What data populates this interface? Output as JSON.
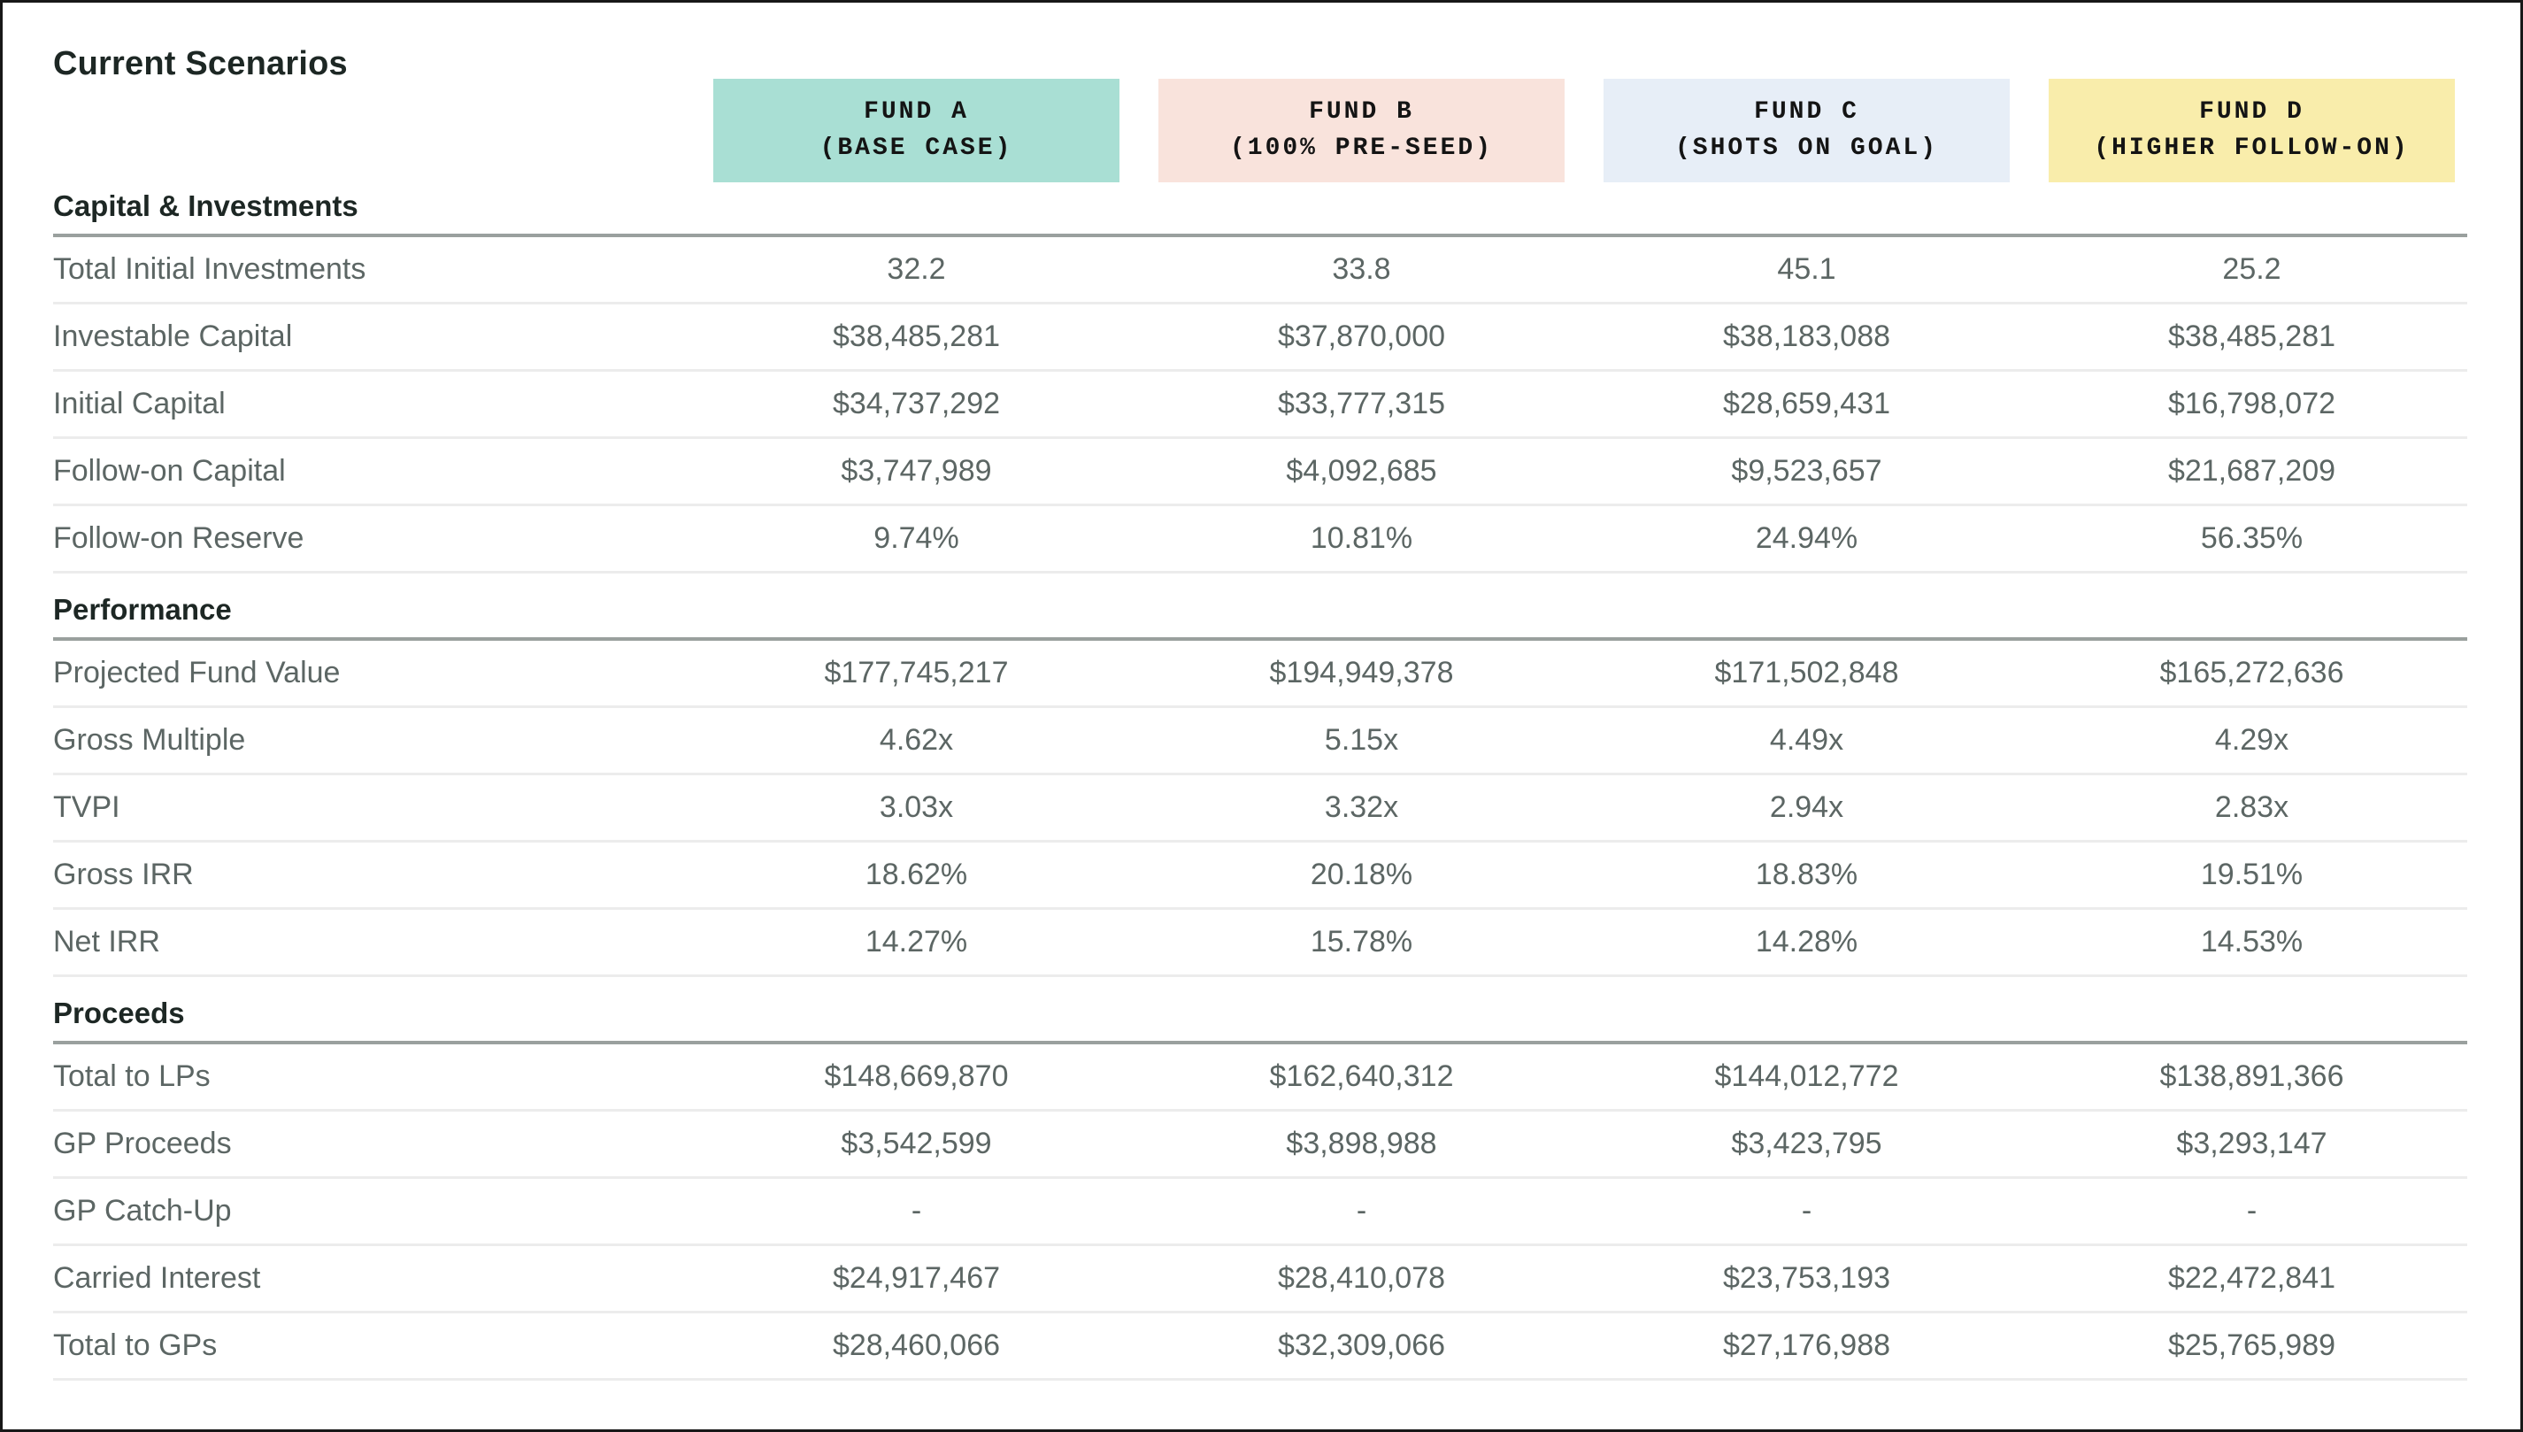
{
  "page": {
    "title": "Current Scenarios"
  },
  "colors": {
    "fund_a_bg": "#a9dfd4",
    "fund_b_bg": "#f9e3dc",
    "fund_c_bg": "#e7eef7",
    "fund_d_bg": "#f9edab",
    "section_divider": "#9aa09e",
    "row_divider": "#ececec",
    "heading_text": "#1d2724",
    "body_text": "#5c6664"
  },
  "funds": [
    {
      "name": "FUND A",
      "subtitle": "(BASE CASE)",
      "color": "#a9dfd4"
    },
    {
      "name": "FUND B",
      "subtitle": "(100% PRE-SEED)",
      "color": "#f9e3dc"
    },
    {
      "name": "FUND C",
      "subtitle": "(SHOTS ON GOAL)",
      "color": "#e7eef7"
    },
    {
      "name": "FUND D",
      "subtitle": "(HIGHER FOLLOW-ON)",
      "color": "#f9edab"
    }
  ],
  "sections": [
    {
      "label": "Capital & Investments",
      "rows": [
        {
          "label": "Total Initial Investments",
          "values": [
            "32.2",
            "33.8",
            "45.1",
            "25.2"
          ]
        },
        {
          "label": "Investable Capital",
          "values": [
            "$38,485,281",
            "$37,870,000",
            "$38,183,088",
            "$38,485,281"
          ]
        },
        {
          "label": "Initial Capital",
          "values": [
            "$34,737,292",
            "$33,777,315",
            "$28,659,431",
            "$16,798,072"
          ]
        },
        {
          "label": "Follow-on Capital",
          "values": [
            "$3,747,989",
            "$4,092,685",
            "$9,523,657",
            "$21,687,209"
          ]
        },
        {
          "label": "Follow-on Reserve",
          "values": [
            "9.74%",
            "10.81%",
            "24.94%",
            "56.35%"
          ]
        }
      ]
    },
    {
      "label": "Performance",
      "rows": [
        {
          "label": "Projected Fund Value",
          "values": [
            "$177,745,217",
            "$194,949,378",
            "$171,502,848",
            "$165,272,636"
          ]
        },
        {
          "label": "Gross Multiple",
          "values": [
            "4.62x",
            "5.15x",
            "4.49x",
            "4.29x"
          ]
        },
        {
          "label": "TVPI",
          "values": [
            "3.03x",
            "3.32x",
            "2.94x",
            "2.83x"
          ]
        },
        {
          "label": "Gross IRR",
          "values": [
            "18.62%",
            "20.18%",
            "18.83%",
            "19.51%"
          ]
        },
        {
          "label": "Net IRR",
          "values": [
            "14.27%",
            "15.78%",
            "14.28%",
            "14.53%"
          ]
        }
      ]
    },
    {
      "label": "Proceeds",
      "rows": [
        {
          "label": "Total to LPs",
          "values": [
            "$148,669,870",
            "$162,640,312",
            "$144,012,772",
            "$138,891,366"
          ]
        },
        {
          "label": "GP Proceeds",
          "values": [
            "$3,542,599",
            "$3,898,988",
            "$3,423,795",
            "$3,293,147"
          ]
        },
        {
          "label": "GP Catch-Up",
          "values": [
            "-",
            "-",
            "-",
            "-"
          ]
        },
        {
          "label": "Carried Interest",
          "values": [
            "$24,917,467",
            "$28,410,078",
            "$23,753,193",
            "$22,472,841"
          ]
        },
        {
          "label": "Total to GPs",
          "values": [
            "$28,460,066",
            "$32,309,066",
            "$27,176,988",
            "$25,765,989"
          ]
        }
      ]
    }
  ]
}
